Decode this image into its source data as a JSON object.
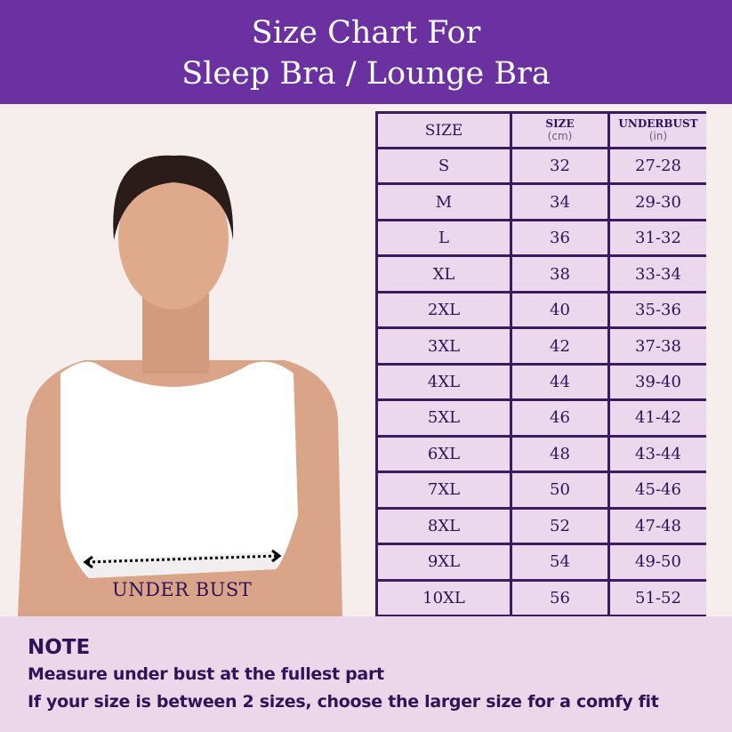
{
  "header": {
    "title_line1": "Size Chart For",
    "title_line2": "Sleep Bra / Lounge Bra"
  },
  "photo": {
    "measure_label": "UNDER BUST"
  },
  "table": {
    "headers": [
      {
        "title": "SIZE",
        "unit": ""
      },
      {
        "title": "SIZE",
        "unit": "(cm)"
      },
      {
        "title": "UNDERBUST",
        "unit": "(in)"
      }
    ],
    "rows": [
      [
        "S",
        "32",
        "27-28"
      ],
      [
        "M",
        "34",
        "29-30"
      ],
      [
        "L",
        "36",
        "31-32"
      ],
      [
        "XL",
        "38",
        "33-34"
      ],
      [
        "2XL",
        "40",
        "35-36"
      ],
      [
        "3XL",
        "42",
        "37-38"
      ],
      [
        "4XL",
        "44",
        "39-40"
      ],
      [
        "5XL",
        "46",
        "41-42"
      ],
      [
        "6XL",
        "48",
        "43-44"
      ],
      [
        "7XL",
        "50",
        "45-46"
      ],
      [
        "8XL",
        "52",
        "47-48"
      ],
      [
        "9XL",
        "54",
        "49-50"
      ],
      [
        "10XL",
        "56",
        "51-52"
      ]
    ]
  },
  "note": {
    "title": "NOTE",
    "lines": [
      "Measure under bust at the fullest part",
      "If your size is between 2 sizes, choose the larger size for a comfy fit"
    ]
  },
  "colors": {
    "header": "#6b31a0",
    "border": "#3a1b60",
    "cell": "#ecd8ec",
    "text": "#2e1457"
  }
}
